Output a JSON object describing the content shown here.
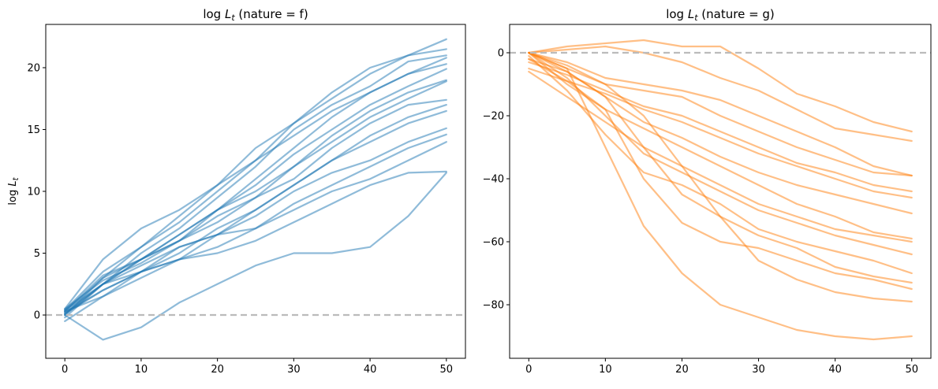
{
  "chart_data": [
    {
      "type": "line",
      "title": "log L_t (nature = f)",
      "title_prefix": "log ",
      "title_var": "L",
      "title_sub": "t",
      "title_suffix": " (nature = f)",
      "xlabel": "",
      "ylabel": "log L_t",
      "ylabel_prefix": "log ",
      "ylabel_var": "L",
      "ylabel_sub": "t",
      "xlim": [
        -2.5,
        52.5
      ],
      "ylim": [
        -3.5,
        23.5
      ],
      "xticks": [
        0,
        10,
        20,
        30,
        40,
        50
      ],
      "yticks": [
        0,
        5,
        10,
        15,
        20
      ],
      "xtick_labels": [
        "0",
        "10",
        "20",
        "30",
        "40",
        "50"
      ],
      "ytick_labels": [
        "0",
        "5",
        "10",
        "15",
        "20"
      ],
      "series_color": "#1f77b4",
      "series_opacity": 0.5,
      "reference_line": {
        "y": 0,
        "color": "#bbbbbb",
        "style": "dashed"
      },
      "grid": false,
      "x": [
        0,
        5,
        10,
        15,
        20,
        25,
        30,
        35,
        40,
        45,
        50
      ],
      "series": [
        {
          "values": [
            0.5,
            4.5,
            7.0,
            8.5,
            10.5,
            12.5,
            15.5,
            17.5,
            19.5,
            21.0,
            22.3
          ]
        },
        {
          "values": [
            0.3,
            3.0,
            5.5,
            8.0,
            10.5,
            13.5,
            15.5,
            18.0,
            20.0,
            21.0,
            21.5
          ]
        },
        {
          "values": [
            0.2,
            2.5,
            5.0,
            7.0,
            9.5,
            12.0,
            15.0,
            17.0,
            18.5,
            20.5,
            21.0
          ]
        },
        {
          "values": [
            0.4,
            3.5,
            5.5,
            7.5,
            10.0,
            12.5,
            14.5,
            16.5,
            18.0,
            19.5,
            20.8
          ]
        },
        {
          "values": [
            0.1,
            2.5,
            4.5,
            6.5,
            8.5,
            11.0,
            13.5,
            16.0,
            18.0,
            19.5,
            20.3
          ]
        },
        {
          "values": [
            0.0,
            3.0,
            4.5,
            6.5,
            8.5,
            10.5,
            13.0,
            15.0,
            17.0,
            18.5,
            19.9
          ]
        },
        {
          "values": [
            0.3,
            3.2,
            4.5,
            6.0,
            8.5,
            10.0,
            12.0,
            14.5,
            16.5,
            18.0,
            19.0
          ]
        },
        {
          "values": [
            -0.2,
            2.5,
            4.5,
            6.0,
            7.5,
            9.5,
            12.0,
            14.0,
            16.0,
            17.5,
            18.9
          ]
        },
        {
          "values": [
            0.5,
            2.8,
            4.2,
            6.0,
            8.0,
            9.5,
            11.0,
            13.5,
            15.5,
            17.0,
            17.4
          ]
        },
        {
          "values": [
            0.2,
            2.0,
            3.5,
            5.0,
            7.0,
            8.5,
            10.5,
            12.5,
            14.5,
            16.0,
            17.0
          ]
        },
        {
          "values": [
            0.0,
            2.5,
            4.0,
            5.5,
            6.5,
            8.5,
            10.5,
            12.5,
            14.0,
            15.5,
            16.5
          ]
        },
        {
          "values": [
            0.3,
            1.5,
            3.0,
            4.5,
            6.5,
            8.0,
            10.0,
            11.5,
            12.5,
            14.0,
            15.1
          ]
        },
        {
          "values": [
            -0.5,
            1.5,
            3.5,
            5.5,
            6.5,
            7.0,
            9.0,
            10.5,
            12.0,
            13.5,
            14.6
          ]
        },
        {
          "values": [
            0.1,
            2.0,
            3.5,
            4.5,
            5.5,
            7.0,
            8.5,
            10.0,
            11.0,
            12.5,
            14.0
          ]
        },
        {
          "values": [
            0.4,
            2.5,
            3.5,
            4.5,
            5.0,
            6.0,
            7.5,
            9.0,
            10.5,
            11.5,
            11.6
          ]
        },
        {
          "values": [
            0.0,
            -2.0,
            -1.0,
            1.0,
            2.5,
            4.0,
            5.0,
            5.0,
            5.5,
            8.0,
            11.5
          ]
        }
      ]
    },
    {
      "type": "line",
      "title": "log L_t (nature = g)",
      "title_prefix": "log ",
      "title_var": "L",
      "title_sub": "t",
      "title_suffix": " (nature = g)",
      "xlabel": "",
      "ylabel": "",
      "xlim": [
        -2.5,
        52.5
      ],
      "ylim": [
        -97,
        9
      ],
      "xticks": [
        0,
        10,
        20,
        30,
        40,
        50
      ],
      "yticks": [
        0,
        -20,
        -40,
        -60,
        -80
      ],
      "xtick_labels": [
        "0",
        "10",
        "20",
        "30",
        "40",
        "50"
      ],
      "ytick_labels": [
        "0",
        "−20",
        "−40",
        "−60",
        "−80"
      ],
      "series_color": "#ff7f0e",
      "series_opacity": 0.5,
      "reference_line": {
        "y": 0,
        "color": "#bbbbbb",
        "style": "dashed"
      },
      "grid": false,
      "x": [
        0,
        5,
        10,
        15,
        20,
        25,
        30,
        35,
        40,
        45,
        50
      ],
      "series": [
        {
          "values": [
            0,
            2,
            3,
            4,
            2,
            2,
            -5,
            -13,
            -17,
            -22,
            -25
          ]
        },
        {
          "values": [
            0,
            1,
            2,
            0,
            -3,
            -8,
            -12,
            -18,
            -24,
            -26,
            -28
          ]
        },
        {
          "values": [
            0,
            -3,
            -8,
            -10,
            -12,
            -15,
            -20,
            -25,
            -30,
            -36,
            -39
          ]
        },
        {
          "values": [
            0,
            -5,
            -10,
            -12,
            -14,
            -20,
            -25,
            -30,
            -34,
            -38,
            -39
          ]
        },
        {
          "values": [
            -3,
            -7,
            -12,
            -17,
            -20,
            -25,
            -30,
            -35,
            -38,
            -42,
            -44
          ]
        },
        {
          "values": [
            -5,
            -9,
            -13,
            -18,
            -22,
            -27,
            -32,
            -36,
            -40,
            -44,
            -46
          ]
        },
        {
          "values": [
            -2,
            -6,
            -14,
            -22,
            -27,
            -33,
            -38,
            -42,
            -45,
            -48,
            -51
          ]
        },
        {
          "values": [
            0,
            -10,
            -18,
            -24,
            -30,
            -36,
            -42,
            -48,
            -52,
            -57,
            -59
          ]
        },
        {
          "values": [
            -6,
            -14,
            -22,
            -30,
            -36,
            -42,
            -48,
            -52,
            -56,
            -58,
            -60
          ]
        },
        {
          "values": [
            0,
            -8,
            -20,
            -32,
            -38,
            -44,
            -50,
            -54,
            -58,
            -61,
            -64
          ]
        },
        {
          "values": [
            -1,
            -12,
            -26,
            -38,
            -42,
            -48,
            -56,
            -60,
            -63,
            -66,
            -70
          ]
        },
        {
          "values": [
            0,
            -6,
            -14,
            -30,
            -45,
            -52,
            -58,
            -62,
            -68,
            -71,
            -73
          ]
        },
        {
          "values": [
            -2,
            -9,
            -18,
            -40,
            -54,
            -60,
            -62,
            -66,
            -70,
            -72,
            -75
          ]
        },
        {
          "values": [
            0,
            -4,
            -10,
            -20,
            -36,
            -52,
            -66,
            -72,
            -76,
            -78,
            -79
          ]
        },
        {
          "values": [
            0,
            -5,
            -30,
            -55,
            -70,
            -80,
            -84,
            -88,
            -90,
            -91,
            -90
          ]
        }
      ]
    }
  ]
}
